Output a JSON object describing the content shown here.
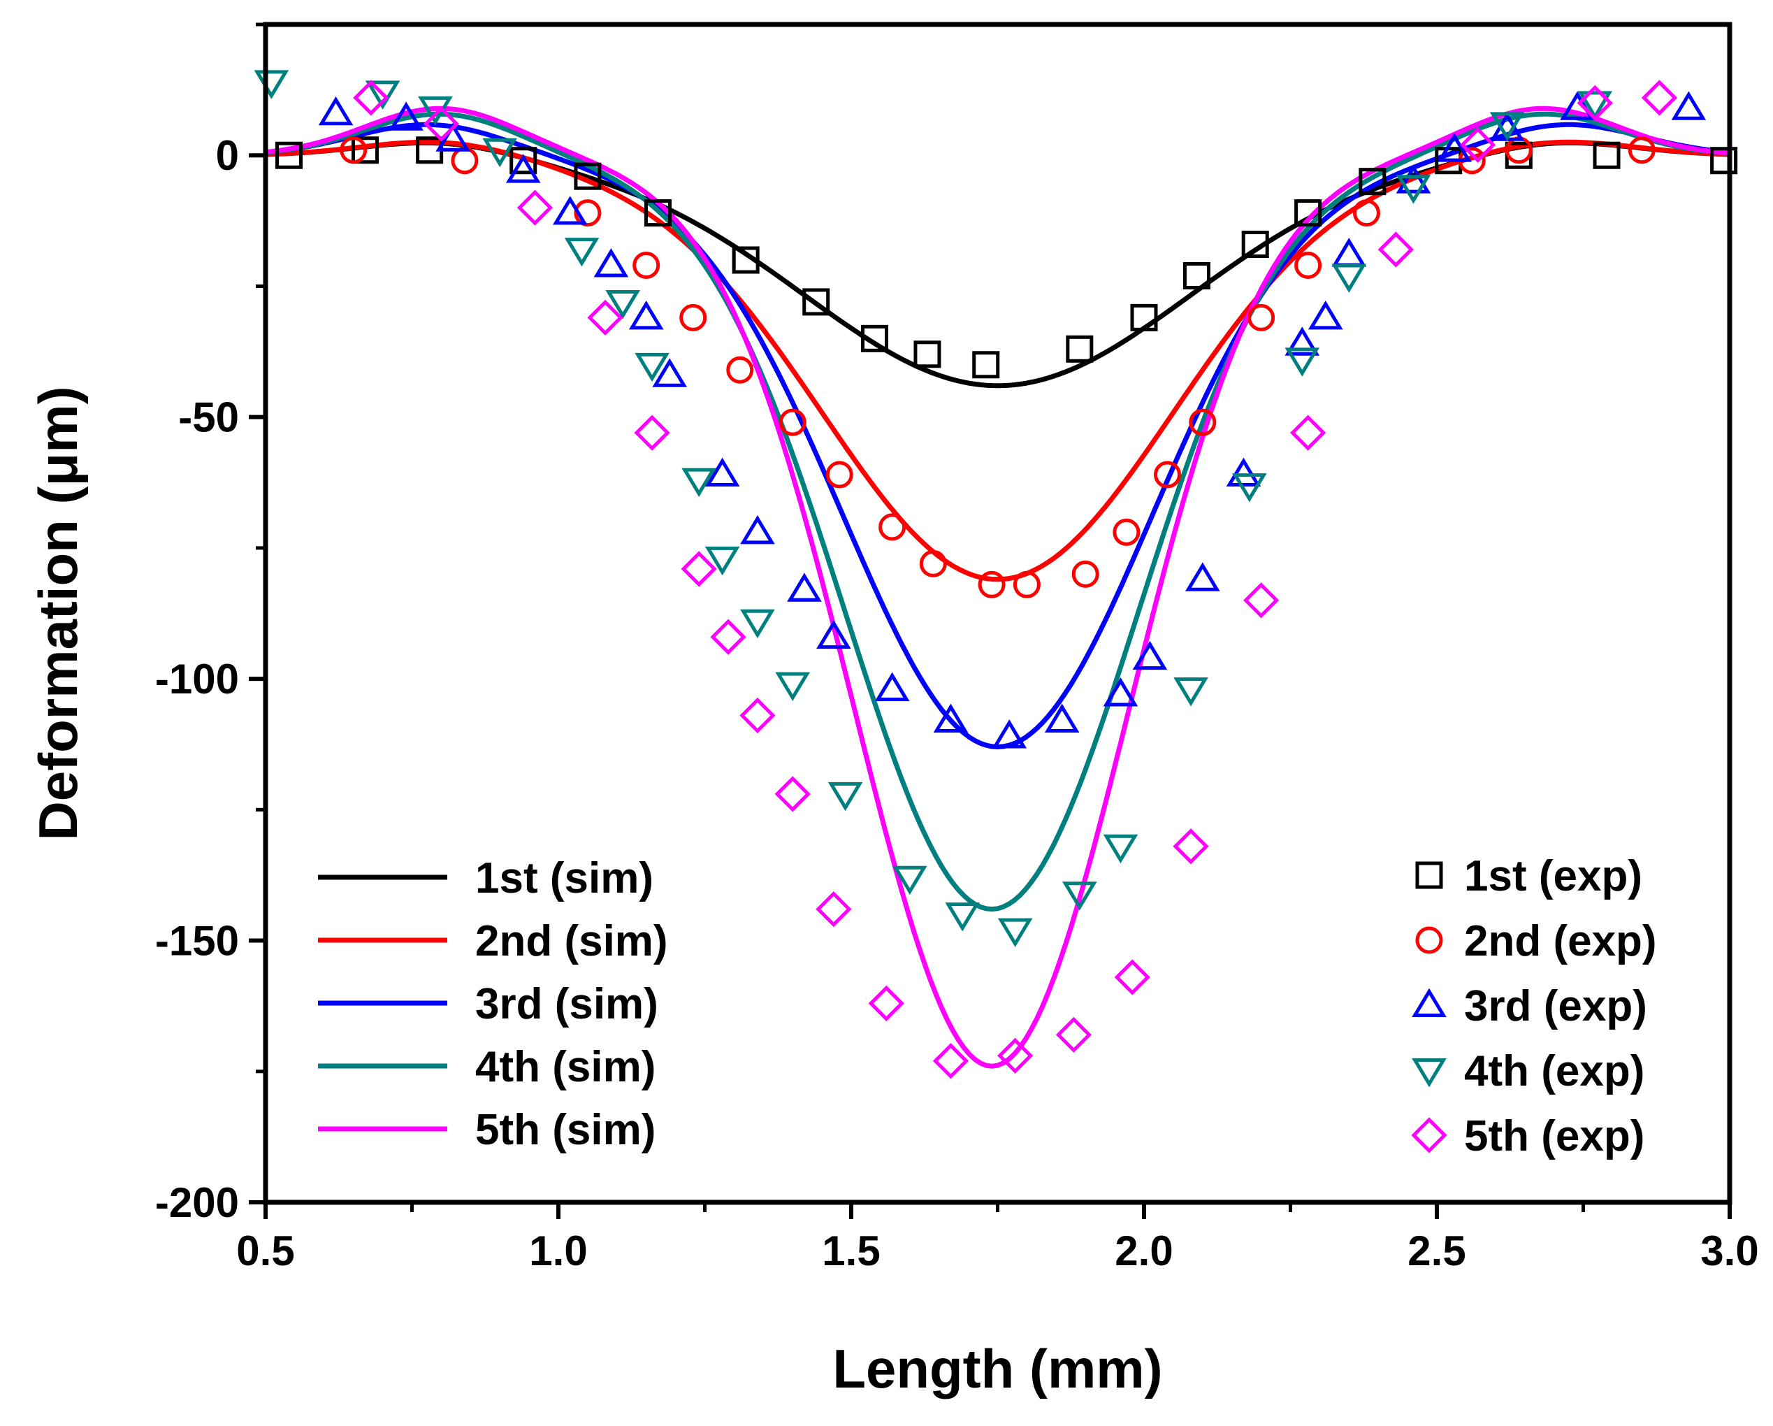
{
  "chart_data": {
    "type": "line",
    "xlabel": "Length (mm)",
    "ylabel": "Deformation (μm)",
    "xlim": [
      0.5,
      3.0
    ],
    "ylim": [
      -200,
      25
    ],
    "xticks": [
      0.5,
      1.0,
      1.5,
      2.0,
      2.5,
      3.0
    ],
    "xtick_labels": [
      "0.5",
      "1.0",
      "1.5",
      "2.0",
      "2.5",
      "3.0"
    ],
    "yticks": [
      0,
      -50,
      -100,
      -150,
      -200
    ],
    "ytick_labels": [
      "0",
      "-50",
      "-100",
      "-150",
      "-200"
    ],
    "grid": false,
    "simulated": [
      {
        "name": "1st (sim)",
        "color": "#000000",
        "depth": 44,
        "center": 1.75,
        "sigma": 0.33,
        "bump": 3,
        "bump_center": 0.8
      },
      {
        "name": "2nd (sim)",
        "color": "#ff0000",
        "depth": 81,
        "center": 1.75,
        "sigma": 0.3,
        "bump": 3,
        "bump_center": 0.8
      },
      {
        "name": "3rd (sim)",
        "color": "#0000ff",
        "depth": 113,
        "center": 1.75,
        "sigma": 0.265,
        "bump": 6,
        "bump_center": 0.78
      },
      {
        "name": "4th (sim)",
        "color": "#007f7f",
        "depth": 144,
        "center": 1.74,
        "sigma": 0.25,
        "bump": 8,
        "bump_center": 0.8
      },
      {
        "name": "5th (sim)",
        "color": "#ff00ff",
        "depth": 174,
        "center": 1.74,
        "sigma": 0.235,
        "bump": 9,
        "bump_center": 0.8
      }
    ],
    "experimental": [
      {
        "name": "1st (exp)",
        "marker": "square",
        "color": "#000000",
        "x": [
          0.54,
          0.67,
          0.78,
          0.94,
          1.05,
          1.17,
          1.32,
          1.44,
          1.54,
          1.63,
          1.73,
          1.89,
          2.0,
          2.09,
          2.19,
          2.28,
          2.39,
          2.52,
          2.64,
          2.79,
          2.99
        ],
        "y": [
          0,
          1,
          1,
          -1,
          -4,
          -11,
          -20,
          -28,
          -35,
          -38,
          -40,
          -37,
          -31,
          -23,
          -17,
          -11,
          -5,
          -1,
          0,
          0,
          -1
        ]
      },
      {
        "name": "2nd (exp)",
        "marker": "circle",
        "color": "#ff0000",
        "x": [
          0.65,
          0.84,
          1.05,
          1.15,
          1.23,
          1.31,
          1.4,
          1.48,
          1.57,
          1.64,
          1.74,
          1.8,
          1.9,
          1.97,
          2.04,
          2.1,
          2.2,
          2.28,
          2.38,
          2.56,
          2.64,
          2.85
        ],
        "y": [
          1,
          -1,
          -11,
          -21,
          -31,
          -41,
          -51,
          -61,
          -71,
          -78,
          -82,
          -82,
          -80,
          -72,
          -61,
          -51,
          -31,
          -21,
          -11,
          -1,
          1,
          1
        ]
      },
      {
        "name": "3rd (exp)",
        "marker": "triangle-up",
        "color": "#0000ff",
        "x": [
          0.62,
          0.74,
          0.82,
          0.94,
          1.02,
          1.09,
          1.15,
          1.19,
          1.28,
          1.34,
          1.42,
          1.47,
          1.57,
          1.67,
          1.77,
          1.86,
          1.96,
          2.01,
          2.1,
          2.17,
          2.27,
          2.31,
          2.35,
          2.46,
          2.53,
          2.62,
          2.74,
          2.93
        ],
        "y": [
          8,
          7,
          3,
          -3,
          -11,
          -21,
          -31,
          -42,
          -61,
          -72,
          -83,
          -92,
          -102,
          -108,
          -111,
          -108,
          -103,
          -96,
          -81,
          -61,
          -36,
          -31,
          -19,
          -5,
          1,
          5,
          9,
          9
        ]
      },
      {
        "name": "4th (exp)",
        "marker": "triangle-down",
        "color": "#007f7f",
        "x": [
          0.51,
          0.7,
          0.79,
          0.9,
          1.04,
          1.11,
          1.16,
          1.24,
          1.28,
          1.34,
          1.4,
          1.49,
          1.6,
          1.69,
          1.78,
          1.89,
          1.96,
          2.08,
          2.18,
          2.27,
          2.35,
          2.46,
          2.62,
          2.77
        ],
        "y": [
          14,
          12,
          9,
          1,
          -18,
          -28,
          -40,
          -62,
          -77,
          -89,
          -101,
          -122,
          -138,
          -145,
          -148,
          -141,
          -132,
          -102,
          -63,
          -39,
          -23,
          -6,
          6,
          10
        ]
      },
      {
        "name": "5th (exp)",
        "marker": "diamond",
        "color": "#ff00ff",
        "x": [
          0.68,
          0.8,
          0.96,
          1.08,
          1.16,
          1.24,
          1.29,
          1.34,
          1.4,
          1.47,
          1.56,
          1.67,
          1.78,
          1.88,
          1.98,
          2.08,
          2.2,
          2.28,
          2.43,
          2.57,
          2.77,
          2.88
        ],
        "y": [
          11,
          6,
          -10,
          -31,
          -53,
          -79,
          -92,
          -107,
          -122,
          -144,
          -162,
          -173,
          -172,
          -168,
          -157,
          -132,
          -85,
          -53,
          -18,
          2,
          10,
          11
        ]
      }
    ]
  }
}
